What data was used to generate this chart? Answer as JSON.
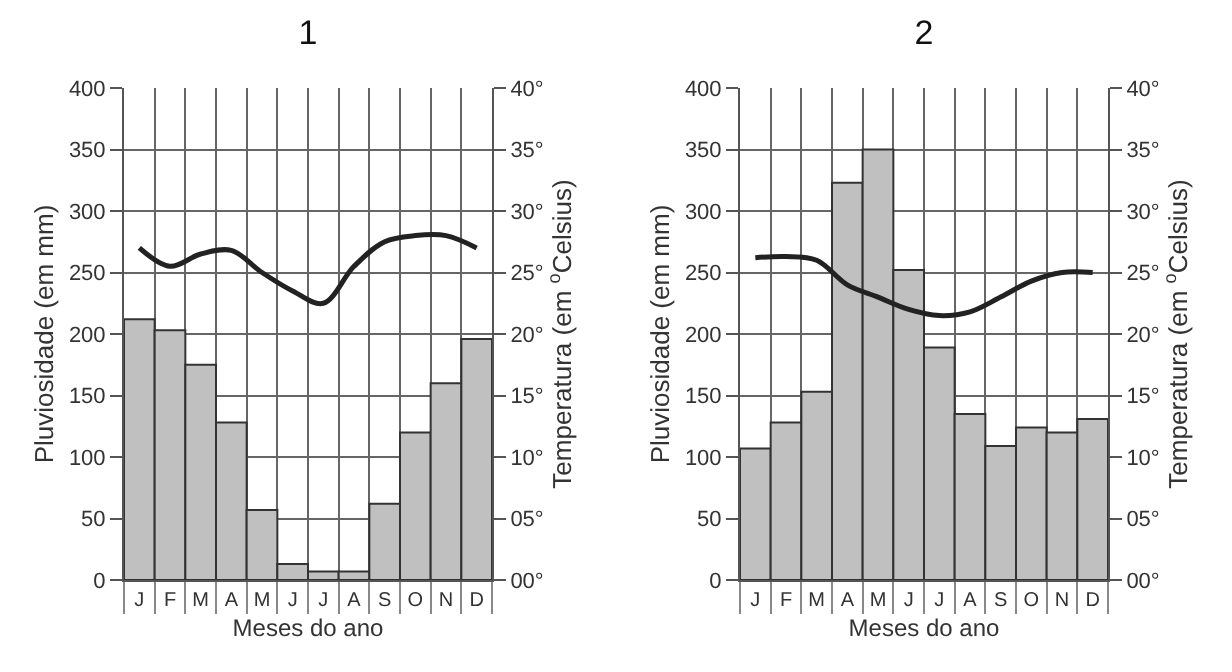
{
  "chart_data": [
    {
      "type": "bar",
      "title": "1",
      "xlabel": "Meses do ano",
      "ylabel": "Pluviosidade (em mm)",
      "y2label": "Temperatura (em $^{o}$Celsius)",
      "categories": [
        "J",
        "F",
        "M",
        "A",
        "M",
        "J",
        "J",
        "A",
        "S",
        "O",
        "N",
        "D"
      ],
      "series": [
        {
          "color": "#c0c0c0",
          "values": [
            212,
            203,
            175,
            128,
            57,
            13,
            7,
            7,
            62,
            120,
            160,
            196
          ]
        },
        {
          "type": "line",
          "axis": "y2",
          "color": "#222222",
          "values": [
            27,
            25.5,
            26.5,
            26.8,
            25,
            23.5,
            22.5,
            25.5,
            27.5,
            28,
            28,
            27
          ]
        }
      ],
      "ylim": [
        0,
        400
      ],
      "yticks": [
        0,
        50,
        100,
        150,
        200,
        250,
        300,
        350,
        400
      ],
      "y2lim": [
        0,
        40
      ],
      "y2ticks": [
        {
          "value": 0,
          "label": "00°"
        },
        {
          "value": 5,
          "label": "05°"
        },
        {
          "value": 10,
          "label": "10°"
        },
        {
          "value": 15,
          "label": "15°"
        },
        {
          "value": 20,
          "label": "20°"
        },
        {
          "value": 25,
          "label": "25°"
        },
        {
          "value": 30,
          "label": "30°"
        },
        {
          "value": 35,
          "label": "35°"
        },
        {
          "value": 40,
          "label": "40°"
        }
      ],
      "grid": true,
      "marker": "none",
      "line_style": "solid"
    },
    {
      "type": "bar",
      "title": "2",
      "xlabel": "Meses do ano",
      "ylabel": "Pluviosidade (em mm)",
      "y2label": "Temperatura (em $^{o}$Celsius)",
      "categories": [
        "J",
        "F",
        "M",
        "A",
        "M",
        "J",
        "J",
        "A",
        "S",
        "O",
        "N",
        "D"
      ],
      "series": [
        {
          "color": "#c0c0c0",
          "values": [
            107,
            128,
            153,
            323,
            350,
            252,
            189,
            135,
            109,
            124,
            120,
            131
          ]
        },
        {
          "type": "line",
          "axis": "y2",
          "color": "#222222",
          "values": [
            26.2,
            26.3,
            26,
            24,
            23,
            22,
            21.5,
            21.8,
            23,
            24.3,
            25,
            25
          ]
        }
      ],
      "ylim": [
        0,
        400
      ],
      "yticks": [
        0,
        50,
        100,
        150,
        200,
        250,
        300,
        350,
        400
      ],
      "y2lim": [
        0,
        40
      ],
      "y2ticks": [
        {
          "value": 0,
          "label": "00°"
        },
        {
          "value": 5,
          "label": "05°"
        },
        {
          "value": 10,
          "label": "10°"
        },
        {
          "value": 15,
          "label": "15°"
        },
        {
          "value": 20,
          "label": "20°"
        },
        {
          "value": 25,
          "label": "25°"
        },
        {
          "value": 30,
          "label": "30°"
        },
        {
          "value": 35,
          "label": "35°"
        },
        {
          "value": 40,
          "label": "40°"
        }
      ],
      "grid": true,
      "marker": "none",
      "line_style": "solid"
    }
  ]
}
